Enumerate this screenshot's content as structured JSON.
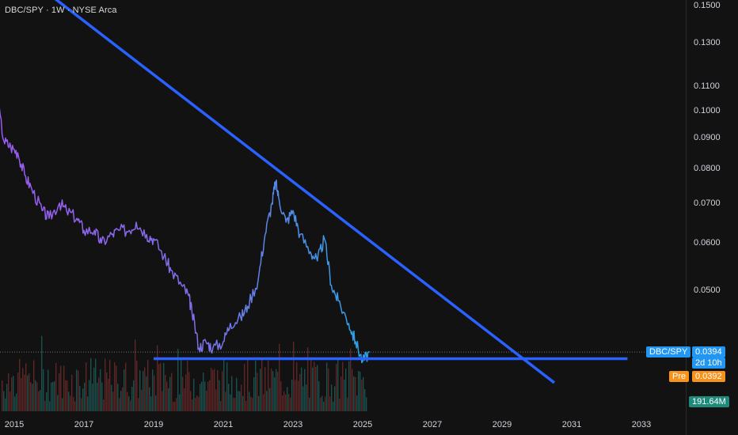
{
  "header": {
    "title": "DBC/SPY · 1W · NYSE Arca"
  },
  "price_axis": {
    "ticks": [
      "0.1500",
      "0.1300",
      "0.1100",
      "0.1000",
      "0.0900",
      "0.0800",
      "0.0700",
      "0.0600",
      "0.0500"
    ]
  },
  "time_axis": {
    "ticks": [
      "2015",
      "2017",
      "2019",
      "2021",
      "2023",
      "2025",
      "2027",
      "2029",
      "2031",
      "2033"
    ]
  },
  "badges": {
    "symbol": "DBC/SPY",
    "last_price": "0.0394",
    "countdown": "2d 10h",
    "pre_label": "Pre",
    "pre_price": "0.0392",
    "volume": "191.64M"
  },
  "colors": {
    "background": "#121212",
    "trendline": "#2962ff",
    "line_start": "#9b59f0",
    "line_end": "#29a3e8",
    "last_price_badge": "#2196f3",
    "pre_badge": "#f7931a",
    "volume_badge": "#1e8a7c",
    "volume_up": "#1f5c58",
    "volume_down": "#6b2a2a"
  },
  "chart_data": {
    "type": "line",
    "series": [
      {
        "x": [
          2014.1,
          2014.3,
          2014.5,
          2014.7,
          2014.9,
          2015.1,
          2015.3,
          2015.5,
          2015.8,
          2016.0,
          2016.3,
          2016.5,
          2016.8,
          2017.0,
          2017.3,
          2017.5,
          2017.8,
          2018.0,
          2018.3,
          2018.5,
          2018.8,
          2019.0,
          2019.3,
          2019.5,
          2019.8,
          2020.0,
          2020.1,
          2020.3,
          2020.5,
          2020.7,
          2021.0,
          2021.2,
          2021.5,
          2021.7,
          2022.0,
          2022.2,
          2022.4,
          2022.5,
          2022.6,
          2022.8,
          2023.0,
          2023.2,
          2023.5,
          2023.7,
          2023.9,
          2024.1,
          2024.3,
          2024.6,
          2024.8,
          2025.0,
          2025.2
        ],
        "y": [
          0.13,
          0.123,
          0.105,
          0.089,
          0.087,
          0.085,
          0.078,
          0.074,
          0.068,
          0.066,
          0.07,
          0.068,
          0.066,
          0.063,
          0.063,
          0.06,
          0.062,
          0.063,
          0.063,
          0.065,
          0.062,
          0.061,
          0.057,
          0.054,
          0.051,
          0.049,
          0.046,
          0.04,
          0.041,
          0.04,
          0.041,
          0.044,
          0.045,
          0.047,
          0.052,
          0.062,
          0.07,
          0.076,
          0.071,
          0.065,
          0.068,
          0.062,
          0.058,
          0.056,
          0.061,
          0.051,
          0.048,
          0.044,
          0.041,
          0.038,
          0.0394
        ]
      }
    ],
    "trendlines": [
      {
        "name": "",
        "points": [
          [
            2015.8,
            0.16
          ],
          [
            2030.5,
            0.035
          ]
        ]
      },
      {
        "name": "",
        "points": [
          [
            2019.0,
            0.0384
          ],
          [
            2032.6,
            0.0384
          ]
        ]
      }
    ],
    "ylim": [
      0.0345,
      0.155
    ],
    "xlim": [
      2014.0,
      2033.9
    ],
    "yscale": "log",
    "grid": false,
    "legend": "none",
    "title": "DBC/SPY · 1W · NYSE Arca"
  }
}
